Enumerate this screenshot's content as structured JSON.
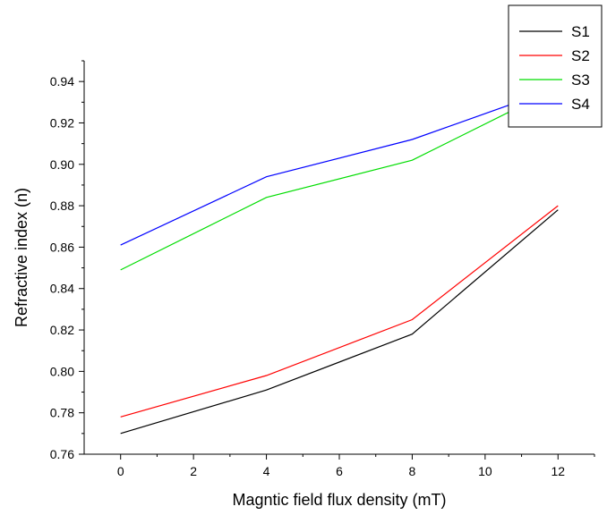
{
  "chart_data": {
    "type": "line",
    "title": "",
    "xlabel": "Magntic field flux density (mT)",
    "ylabel": "Refractive index (n)",
    "xlim": [
      -1,
      13
    ],
    "ylim": [
      0.76,
      0.95
    ],
    "xticks": [
      0,
      2,
      4,
      6,
      8,
      10,
      12
    ],
    "xtick_labels": [
      "0",
      "2",
      "4",
      "6",
      "8",
      "10",
      "12"
    ],
    "yticks": [
      0.76,
      0.78,
      0.8,
      0.82,
      0.84,
      0.86,
      0.88,
      0.9,
      0.92,
      0.94
    ],
    "ytick_labels": [
      "0.76",
      "0.78",
      "0.80",
      "0.82",
      "0.84",
      "0.86",
      "0.88",
      "0.90",
      "0.92",
      "0.94"
    ],
    "grid": false,
    "legend_position": "top-right",
    "x": [
      0,
      4,
      8,
      12
    ],
    "series": [
      {
        "name": "S1",
        "color": "#000000",
        "values": [
          0.77,
          0.791,
          0.818,
          0.878
        ]
      },
      {
        "name": "S2",
        "color": "#ff0000",
        "values": [
          0.778,
          0.798,
          0.825,
          0.88
        ]
      },
      {
        "name": "S3",
        "color": "#00dd00",
        "values": [
          0.849,
          0.884,
          0.902,
          0.937
        ]
      },
      {
        "name": "S4",
        "color": "#0000ff",
        "values": [
          0.861,
          0.894,
          0.912,
          0.937
        ]
      }
    ]
  }
}
